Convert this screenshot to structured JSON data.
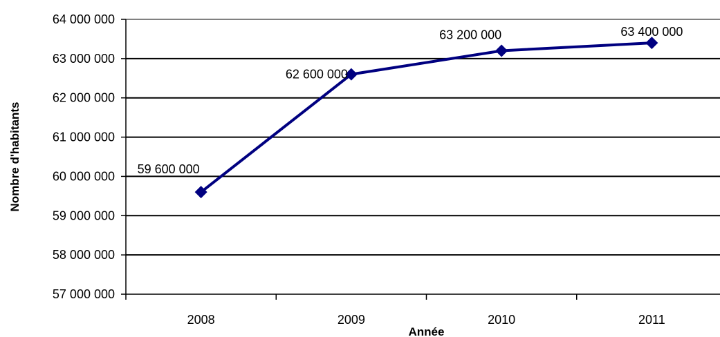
{
  "chart_data": {
    "type": "line",
    "x": [
      "2008",
      "2009",
      "2010",
      "2011"
    ],
    "series": [
      {
        "values": [
          59600000,
          62600000,
          63200000,
          63400000
        ],
        "color": "#000080"
      }
    ],
    "data_labels": [
      "59 600 000",
      "62 600 000",
      "63 200 000",
      "63 400 000"
    ],
    "y_ticks": [
      "57 000 000",
      "58 000 000",
      "59 000 000",
      "60 000 000",
      "61 000 000",
      "62 000 000",
      "63 000 000",
      "64 000 000"
    ],
    "ylim": [
      57000000,
      64000000
    ],
    "xlabel": "Année",
    "ylabel": "Nombre d'habitants",
    "grid": true,
    "marker": "diamond"
  }
}
